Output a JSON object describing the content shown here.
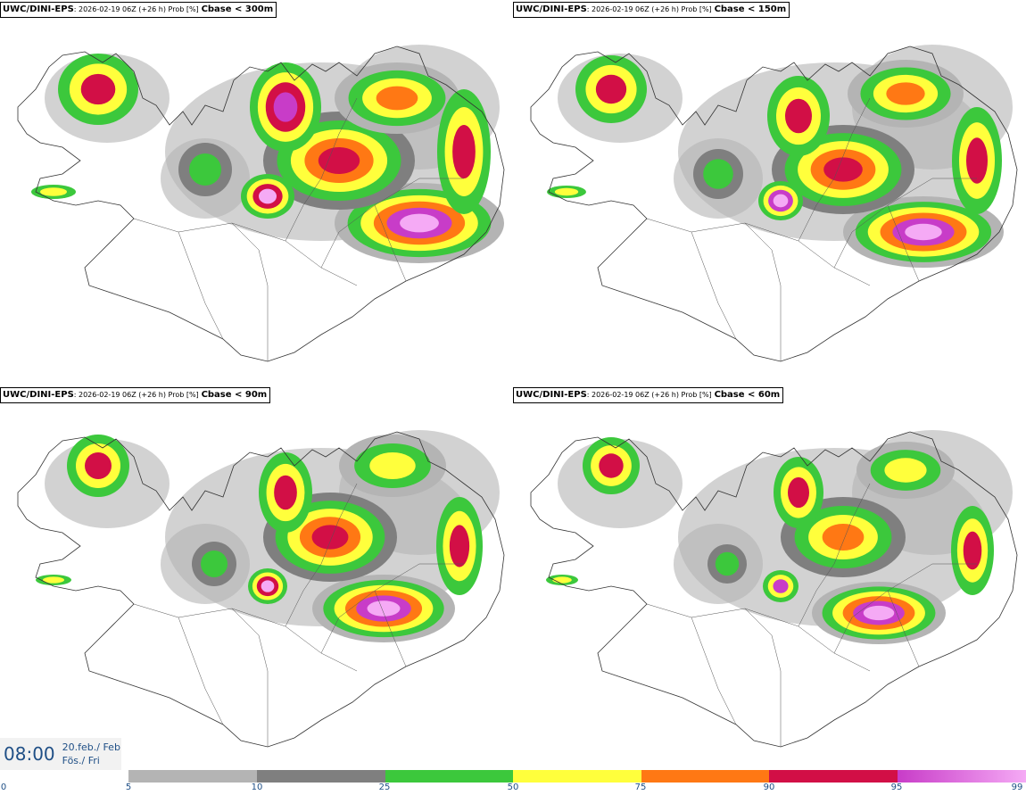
{
  "panels": [
    {
      "model": "UWC/DINI-EPS",
      "meta": ": 2026-02-19 06Z (+26 h) Prob [%]",
      "var": "Cbase < 300m"
    },
    {
      "model": "UWC/DINI-EPS",
      "meta": ": 2026-02-19 06Z (+26 h) Prob [%]",
      "var": "Cbase < 150m"
    },
    {
      "model": "UWC/DINI-EPS",
      "meta": ": 2026-02-19 06Z (+26 h) Prob [%]",
      "var": "Cbase < 90m"
    },
    {
      "model": "UWC/DINI-EPS",
      "meta": ": 2026-02-19 06Z (+26 h) Prob [%]",
      "var": "Cbase < 60m"
    }
  ],
  "time": {
    "clock": "08:00",
    "date_line1": "20.feb./ Feb",
    "date_line2": "Fös./ Fri"
  },
  "colorbar": {
    "ticks": [
      "0",
      "5",
      "10",
      "25",
      "50",
      "75",
      "90",
      "95",
      "99"
    ],
    "colors": {
      "5-10": "#b4b4b4",
      "10-25": "#7f7f7f",
      "25-50": "#3cc83c",
      "50-75": "#ffff3c",
      "75-90": "#ff7814",
      "90-95": "#d20f46",
      "95-99": "#c83cc8",
      "99": "#f5aaf5"
    }
  }
}
